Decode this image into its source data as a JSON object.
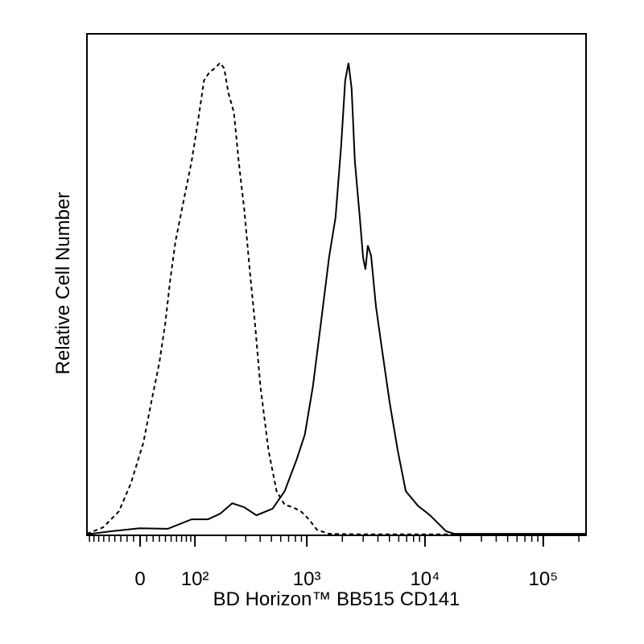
{
  "chart_data": {
    "type": "line",
    "x_label": "BD Horizon™ BB515 CD141",
    "y_label": "Relative Cell Number",
    "xscale": "biexponential",
    "xlim": [
      -96,
      230000
    ],
    "ylim": [
      0,
      100
    ],
    "xticks": [
      0,
      {
        "value": 100,
        "label": "10²"
      },
      {
        "value": 1000,
        "label": "10³"
      },
      {
        "value": 10000,
        "label": "10⁴"
      },
      {
        "value": 100000,
        "label": "10⁵"
      }
    ],
    "xminorticks": [
      -90,
      -80,
      -70,
      -60,
      -50,
      -40,
      -30,
      -20,
      -10,
      10,
      20,
      30,
      40,
      50,
      60,
      70,
      80,
      90,
      200,
      300,
      400,
      500,
      600,
      700,
      800,
      900,
      2000,
      3000,
      4000,
      5000,
      6000,
      7000,
      8000,
      9000,
      20000,
      30000,
      40000,
      50000,
      60000,
      70000,
      80000,
      90000,
      200000
    ],
    "series": [
      {
        "color": "#000000",
        "style": "dashed",
        "x": [
          -96,
          -61,
          -33,
          -14,
          5,
          17,
          30,
          40,
          48,
          58,
          74,
          92,
          108,
          124,
          140,
          157,
          177,
          193,
          210,
          236,
          260,
          291,
          327,
          360,
          402,
          472,
          553,
          648,
          760,
          889,
          1041,
          1219,
          1543,
          2894,
          230000
        ],
        "values": [
          0.3,
          1.6,
          4.8,
          10.4,
          18.5,
          26.5,
          34.5,
          42.5,
          50.6,
          58.6,
          66.6,
          74.6,
          82.7,
          90.7,
          92.3,
          93.1,
          94.2,
          93.1,
          88.3,
          84.3,
          74.6,
          65.0,
          52.2,
          42.5,
          29.7,
          16.9,
          8.8,
          6.1,
          5.6,
          4.8,
          3.2,
          1.1,
          0.3,
          0.2,
          0.2
        ]
      },
      {
        "color": "#000000",
        "style": "solid",
        "x": [
          -96,
          -47,
          -1,
          44,
          92,
          136,
          177,
          228,
          291,
          371,
          511,
          648,
          822,
          962,
          1126,
          1319,
          1543,
          1751,
          1955,
          2114,
          2254,
          2395,
          2551,
          2808,
          2995,
          3136,
          3284,
          3502,
          3845,
          4290,
          5023,
          5881,
          6880,
          8713,
          11029,
          12901,
          15101,
          17667,
          230000
        ],
        "values": [
          0.2,
          0.8,
          1.4,
          1.3,
          3.2,
          3.2,
          4.3,
          6.4,
          5.6,
          4.0,
          5.3,
          8.8,
          15.2,
          20.1,
          29.7,
          42.5,
          55.4,
          63.4,
          77.8,
          90.7,
          94.2,
          89.1,
          74.6,
          63.4,
          55.4,
          53.0,
          57.8,
          55.7,
          45.7,
          37.7,
          26.5,
          16.9,
          8.8,
          5.9,
          4.0,
          2.4,
          0.8,
          0.3,
          0.3
        ]
      }
    ]
  }
}
